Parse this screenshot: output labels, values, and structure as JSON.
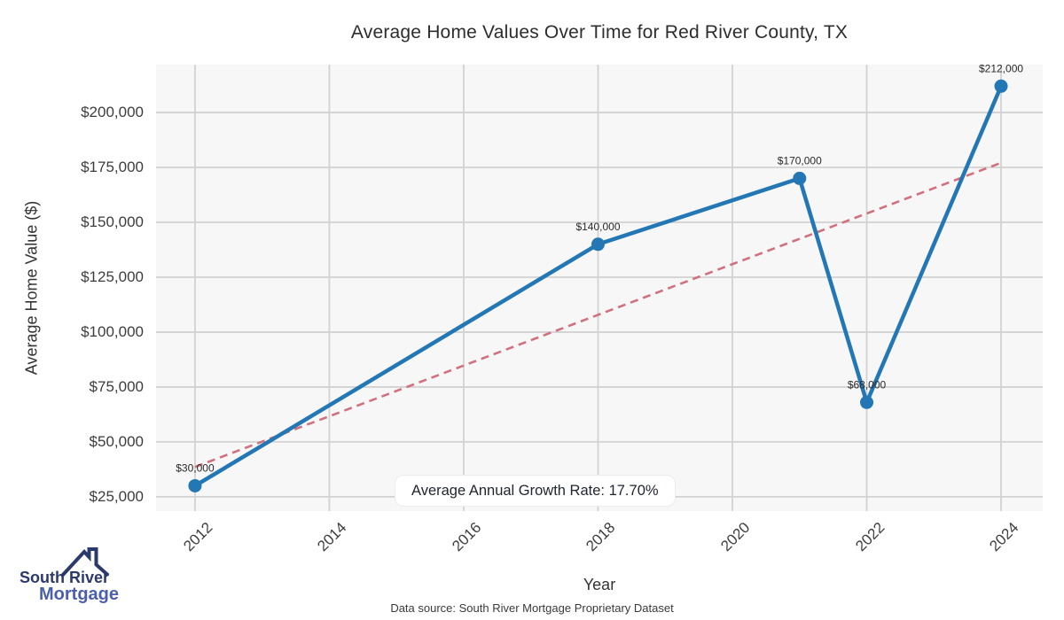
{
  "header": {
    "title": "Average Home Values Over Time for Red River County, TX"
  },
  "chart_data": {
    "type": "line",
    "title": "Average Home Values Over Time for Red River County, TX",
    "xlabel": "Year",
    "ylabel": "Average Home Value ($)",
    "x": [
      2012,
      2018,
      2021,
      2022,
      2024
    ],
    "values": [
      30000,
      140000,
      170000,
      68000,
      212000
    ],
    "point_labels": [
      "$30,000",
      "$140,000",
      "$170,000",
      "$68,000",
      "$212,000"
    ],
    "trendline": {
      "x": [
        2012,
        2024
      ],
      "values": [
        38600,
        177100
      ],
      "style": "dashed",
      "color": "#d1717d"
    },
    "x_ticks": [
      2012,
      2014,
      2016,
      2018,
      2020,
      2022,
      2024
    ],
    "y_ticks": [
      25000,
      50000,
      75000,
      100000,
      125000,
      150000,
      175000,
      200000
    ],
    "y_tick_labels": [
      "$25,000",
      "$50,000",
      "$75,000",
      "$100,000",
      "$125,000",
      "$150,000",
      "$175,000",
      "$200,000"
    ],
    "xlim": [
      2011.42,
      2024.62
    ],
    "ylim": [
      18500,
      221800
    ],
    "grid": true,
    "legend": "none",
    "line_color": "#2277b4",
    "plot_bg": "#f7f7f7",
    "grid_color": "#d2d2d2",
    "annotation": "Average Annual Growth Rate: 17.70%"
  },
  "branding": {
    "logo_line1": "South River",
    "logo_line2": "Mortgage",
    "logo_color_primary": "#2b3a6b",
    "logo_color_secondary": "#4c5fad"
  },
  "footer": {
    "source_text": "Data source: South River Mortgage Proprietary Dataset"
  }
}
